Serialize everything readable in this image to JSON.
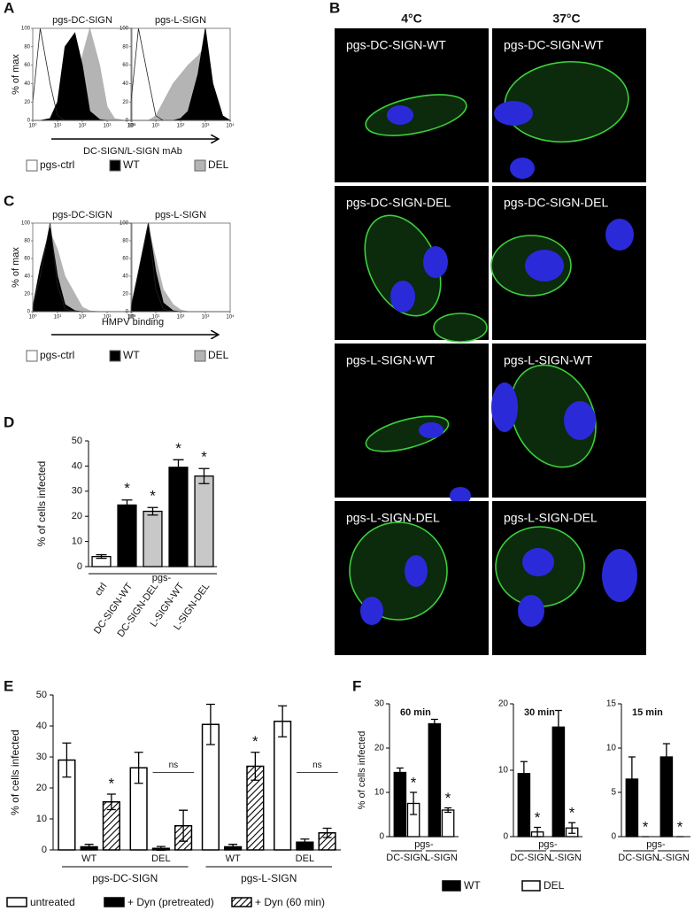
{
  "panel_labels": [
    "A",
    "B",
    "C",
    "D",
    "E",
    "F"
  ],
  "microscopy": {
    "columns": [
      "4°C",
      "37°C"
    ],
    "rows": [
      [
        "pgs-DC-SIGN-WT",
        "pgs-DC-SIGN-WT"
      ],
      [
        "pgs-DC-SIGN-DEL",
        "pgs-DC-SIGN-DEL"
      ],
      [
        "pgs-L-SIGN-WT",
        "pgs-L-SIGN-WT"
      ],
      [
        "pgs-L-SIGN-DEL",
        "pgs-L-SIGN-DEL"
      ]
    ]
  },
  "chart_data": [
    {
      "type": "flow",
      "facets": [
        "pgs-DC-SIGN",
        "pgs-L-SIGN"
      ],
      "y_label": "% of max",
      "x_label": "DC-SIGN/L-SIGN mAb",
      "x_log": true,
      "x": [
        1,
        2,
        5,
        10,
        20,
        50,
        100,
        200,
        500,
        1000,
        2000,
        5000,
        10000
      ],
      "xlim": [
        1,
        10000
      ],
      "xticks": [
        {
          "value": 1,
          "label": "10⁰"
        },
        {
          "value": 10,
          "label": "10¹"
        },
        {
          "value": 100,
          "label": "10²"
        },
        {
          "value": 1000,
          "label": "10³"
        },
        {
          "value": 10000,
          "label": "10⁴"
        }
      ],
      "ylim": [
        0,
        100
      ],
      "yticks": [
        0,
        20,
        40,
        60,
        80,
        100
      ],
      "series": [
        {
          "name": "pgs-ctrl",
          "color": "#ffffff",
          "filled": false,
          "values": [
            [
              20,
              100,
              40,
              5,
              0,
              0,
              0,
              0,
              0,
              0,
              0,
              0,
              0
            ],
            [
              20,
              100,
              45,
              5,
              0,
              0,
              0,
              0,
              0,
              0,
              0,
              0,
              0
            ]
          ]
        },
        {
          "name": "WT",
          "color": "#000000",
          "filled": true,
          "values": [
            [
              0,
              0,
              2,
              20,
              80,
              95,
              60,
              10,
              1,
              0,
              0,
              0,
              0
            ],
            [
              0,
              0,
              0,
              0,
              0,
              0,
              2,
              10,
              50,
              100,
              40,
              5,
              0
            ]
          ]
        },
        {
          "name": "DEL",
          "color": "#b4b4b4",
          "filled": true,
          "values": [
            [
              0,
              0,
              0,
              2,
              10,
              30,
              70,
              100,
              60,
              15,
              2,
              0,
              0
            ],
            [
              0,
              0,
              0,
              5,
              20,
              40,
              50,
              60,
              70,
              80,
              30,
              3,
              0
            ]
          ]
        }
      ]
    },
    {
      "type": "flow",
      "facets": [
        "pgs-DC-SIGN",
        "pgs-L-SIGN"
      ],
      "y_label": "% of max",
      "x_label": "HMPV binding",
      "x_log": true,
      "x": [
        1,
        2,
        5,
        10,
        20,
        50,
        100,
        200,
        500,
        1000,
        2000,
        5000,
        10000
      ],
      "xlim": [
        1,
        10000
      ],
      "xticks": [
        {
          "value": 1,
          "label": "10⁰"
        },
        {
          "value": 10,
          "label": "10¹"
        },
        {
          "value": 100,
          "label": "10²"
        },
        {
          "value": 1000,
          "label": "10³"
        },
        {
          "value": 10000,
          "label": "10⁴"
        }
      ],
      "ylim": [
        0,
        100
      ],
      "yticks": [
        0,
        20,
        40,
        60,
        80,
        100
      ],
      "series": [
        {
          "name": "pgs-ctrl",
          "color": "#ffffff",
          "filled": false,
          "values": [
            [
              5,
              40,
              100,
              30,
              3,
              0,
              0,
              0,
              0,
              0,
              0,
              0,
              0
            ],
            [
              5,
              45,
              100,
              25,
              3,
              0,
              0,
              0,
              0,
              0,
              0,
              0,
              0
            ]
          ]
        },
        {
          "name": "WT",
          "color": "#000000",
          "filled": true,
          "values": [
            [
              5,
              50,
              95,
              40,
              8,
              1,
              0,
              0,
              0,
              0,
              0,
              0,
              0
            ],
            [
              4,
              45,
              100,
              45,
              10,
              1,
              0,
              0,
              0,
              0,
              0,
              0,
              0
            ]
          ]
        },
        {
          "name": "DEL",
          "color": "#b4b4b4",
          "filled": true,
          "values": [
            [
              3,
              40,
              90,
              70,
              40,
              20,
              5,
              1,
              0,
              0,
              0,
              0,
              0
            ],
            [
              3,
              45,
              95,
              60,
              25,
              8,
              2,
              0,
              0,
              0,
              0,
              0,
              0
            ]
          ]
        }
      ]
    },
    {
      "type": "bar",
      "y_label": "% of cells infected",
      "group_label": "pgs-",
      "categories": [
        "ctrl",
        "DC-SIGN-WT",
        "DC-SIGN-DEL",
        "L-SIGN-WT",
        "L-SIGN-DEL"
      ],
      "values": [
        4,
        24.5,
        22,
        39.5,
        36
      ],
      "errors": [
        0.7,
        2,
        1.5,
        3,
        3
      ],
      "colors": [
        "#ffffff",
        "#000000",
        "#c8c8c8",
        "#000000",
        "#c8c8c8"
      ],
      "star_label": "*",
      "starred": [
        false,
        true,
        true,
        true,
        true
      ],
      "ylim": [
        0,
        50
      ],
      "yticks": [
        0,
        10,
        20,
        30,
        40,
        50
      ]
    },
    {
      "type": "grouped_bar",
      "y_label": "% of cells infected",
      "groups": [
        {
          "name": "pgs-DC-SIGN",
          "categories": [
            "WT",
            "DEL"
          ]
        },
        {
          "name": "pgs-L-SIGN",
          "categories": [
            "WT",
            "DEL"
          ]
        }
      ],
      "series": [
        {
          "name": "untreated",
          "color": "#ffffff",
          "hatch": false,
          "values": [
            29,
            26.5,
            40.5,
            41.5
          ],
          "errors": [
            5.5,
            5,
            6.5,
            5
          ],
          "starred": [
            false,
            false,
            false,
            false
          ]
        },
        {
          "name": "+ Dyn (pretreated)",
          "color": "#000000",
          "hatch": false,
          "values": [
            1,
            0.5,
            1,
            2.5
          ],
          "errors": [
            0.8,
            0.6,
            0.8,
            1
          ],
          "starred": [
            false,
            false,
            false,
            false
          ]
        },
        {
          "name": "+ Dyn (60 min)",
          "color": "#ffffff",
          "hatch": true,
          "values": [
            15.5,
            7.8,
            27,
            5.5
          ],
          "errors": [
            2.5,
            5,
            4.5,
            1.5
          ],
          "starred": [
            true,
            false,
            true,
            false
          ]
        }
      ],
      "star_label": "*",
      "ns_label": "ns",
      "ns": [
        false,
        true,
        false,
        true
      ],
      "ylim": [
        0,
        50
      ],
      "yticks": [
        0,
        10,
        20,
        30,
        40,
        50
      ]
    },
    {
      "type": "faceted_bar",
      "y_label": "% of cells infected",
      "group_label": "pgs-",
      "categories": [
        "DC-SIGN",
        "L-SIGN"
      ],
      "star_label": "*",
      "series": [
        {
          "name": "WT",
          "color": "#000000"
        },
        {
          "name": "DEL",
          "color": "#ffffff"
        }
      ],
      "facets": [
        {
          "title": "60 min",
          "ylim": [
            0,
            30
          ],
          "yticks": [
            0,
            10,
            20,
            30
          ],
          "values": [
            [
              14.5,
              25.5
            ],
            [
              7.5,
              6
            ]
          ],
          "errors": [
            [
              1,
              1
            ],
            [
              2.5,
              0.5
            ]
          ],
          "starred": [
            [
              false,
              false
            ],
            [
              true,
              true
            ]
          ]
        },
        {
          "title": "30 min",
          "ylim": [
            0,
            20
          ],
          "yticks": [
            0,
            10,
            20
          ],
          "values": [
            [
              9.5,
              16.5
            ],
            [
              0.7,
              1.3
            ]
          ],
          "errors": [
            [
              1.8,
              2.5
            ],
            [
              0.7,
              0.8
            ]
          ],
          "starred": [
            [
              false,
              false
            ],
            [
              true,
              true
            ]
          ]
        },
        {
          "title": "15 min",
          "ylim": [
            0,
            15
          ],
          "yticks": [
            0,
            5,
            10,
            15
          ],
          "values": [
            [
              6.5,
              9
            ],
            [
              0,
              0
            ]
          ],
          "errors": [
            [
              2.5,
              1.5
            ],
            [
              0,
              0
            ]
          ],
          "starred": [
            [
              false,
              false
            ],
            [
              true,
              true
            ]
          ]
        }
      ]
    }
  ]
}
